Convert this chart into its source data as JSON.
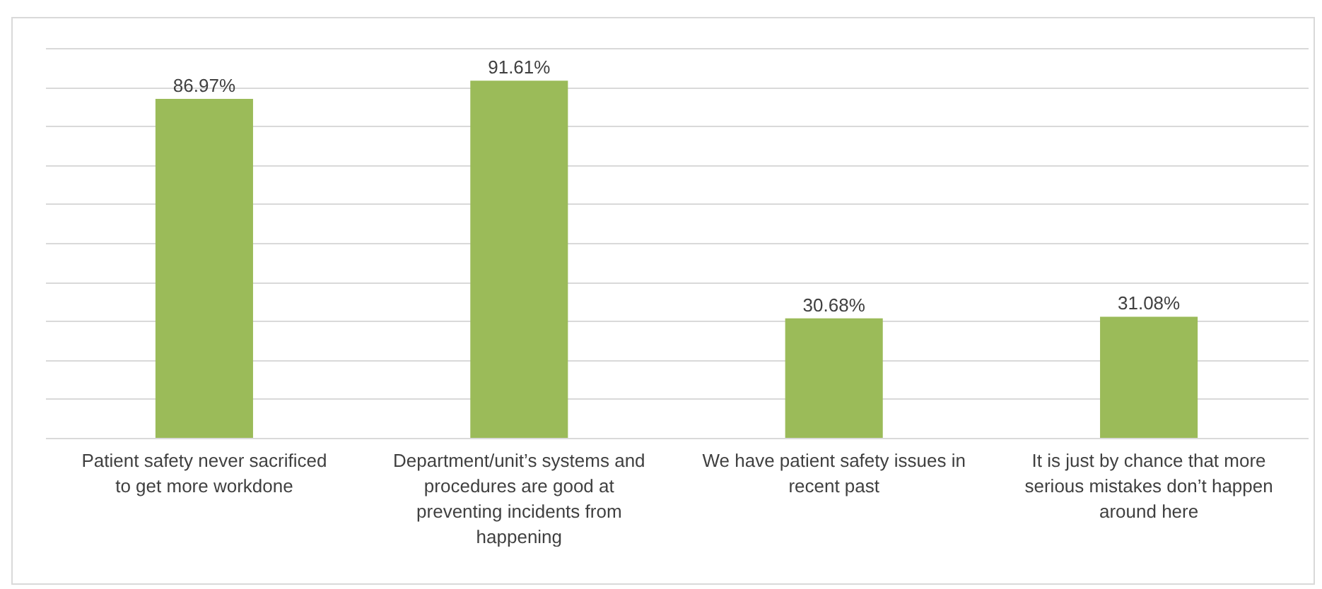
{
  "chart_data": {
    "type": "bar",
    "categories": [
      "Patient safety never sacrificed to get more workdone",
      "Department/unit’s  systems and procedures are good at preventing incidents from happening",
      "We have patient safety issues in recent past",
      "It is just by chance that more serious mistakes don’t happen around here"
    ],
    "values": [
      86.97,
      91.61,
      30.68,
      31.08
    ],
    "value_labels": [
      "86.97%",
      "91.61%",
      "30.68%",
      "31.08%"
    ],
    "color": "#9bbb59",
    "ylim": [
      0,
      100
    ],
    "grid": "y",
    "tick_labels": "x"
  }
}
